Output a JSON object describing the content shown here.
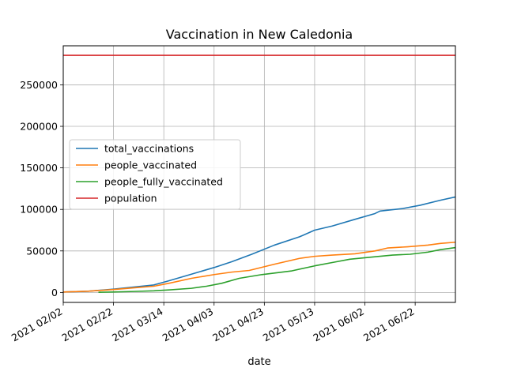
{
  "chart_data": {
    "type": "line",
    "title": "Vaccination in New Caledonia",
    "xlabel": "date",
    "ylabel": "",
    "grid": true,
    "legend_position": "center-left",
    "xlim": [
      "2021-02-02",
      "2021-07-08"
    ],
    "ylim": [
      -12000,
      297000
    ],
    "yticks": [
      0,
      50000,
      100000,
      150000,
      200000,
      250000
    ],
    "xticks": [
      {
        "date": "2021-02-02",
        "label": "2021 02/02"
      },
      {
        "date": "2021-02-22",
        "label": "2021 02/22"
      },
      {
        "date": "2021-03-14",
        "label": "2021 03/14"
      },
      {
        "date": "2021-04-03",
        "label": "2021 04/03"
      },
      {
        "date": "2021-04-23",
        "label": "2021 04/23"
      },
      {
        "date": "2021-05-13",
        "label": "2021 05/13"
      },
      {
        "date": "2021-06-02",
        "label": "2021 06/02"
      },
      {
        "date": "2021-06-22",
        "label": "2021 06/22"
      }
    ],
    "series": [
      {
        "name": "total_vaccinations",
        "color": "#1f77b4",
        "points": [
          [
            "2021-02-02",
            500
          ],
          [
            "2021-02-12",
            1500
          ],
          [
            "2021-02-22",
            4000
          ],
          [
            "2021-03-02",
            6500
          ],
          [
            "2021-03-10",
            9000
          ],
          [
            "2021-03-16",
            14000
          ],
          [
            "2021-03-25",
            22000
          ],
          [
            "2021-04-03",
            30000
          ],
          [
            "2021-04-10",
            37000
          ],
          [
            "2021-04-18",
            46000
          ],
          [
            "2021-04-27",
            57000
          ],
          [
            "2021-05-07",
            67000
          ],
          [
            "2021-05-13",
            75000
          ],
          [
            "2021-05-20",
            80000
          ],
          [
            "2021-05-29",
            88000
          ],
          [
            "2021-06-06",
            95000
          ],
          [
            "2021-06-08",
            98000
          ],
          [
            "2021-06-17",
            101000
          ],
          [
            "2021-06-24",
            105000
          ],
          [
            "2021-07-02",
            111000
          ],
          [
            "2021-07-08",
            115000
          ]
        ]
      },
      {
        "name": "people_vaccinated",
        "color": "#ff7f0e",
        "points": [
          [
            "2021-02-02",
            500
          ],
          [
            "2021-02-12",
            1500
          ],
          [
            "2021-02-22",
            3500
          ],
          [
            "2021-03-02",
            5500
          ],
          [
            "2021-03-10",
            7500
          ],
          [
            "2021-03-16",
            11000
          ],
          [
            "2021-03-25",
            17000
          ],
          [
            "2021-04-03",
            21500
          ],
          [
            "2021-04-10",
            24500
          ],
          [
            "2021-04-17",
            26500
          ],
          [
            "2021-04-27",
            34000
          ],
          [
            "2021-05-07",
            41000
          ],
          [
            "2021-05-13",
            43500
          ],
          [
            "2021-05-20",
            45000
          ],
          [
            "2021-05-29",
            46500
          ],
          [
            "2021-06-06",
            50000
          ],
          [
            "2021-06-11",
            53500
          ],
          [
            "2021-06-19",
            55000
          ],
          [
            "2021-06-27",
            57000
          ],
          [
            "2021-07-02",
            59000
          ],
          [
            "2021-07-08",
            60500
          ]
        ]
      },
      {
        "name": "people_fully_vaccinated",
        "color": "#2ca02c",
        "points": [
          [
            "2021-02-16",
            200
          ],
          [
            "2021-02-22",
            500
          ],
          [
            "2021-03-02",
            1200
          ],
          [
            "2021-03-10",
            2000
          ],
          [
            "2021-03-16",
            3000
          ],
          [
            "2021-03-25",
            5000
          ],
          [
            "2021-03-31",
            7500
          ],
          [
            "2021-04-06",
            11000
          ],
          [
            "2021-04-13",
            17000
          ],
          [
            "2021-04-22",
            21500
          ],
          [
            "2021-05-04",
            26000
          ],
          [
            "2021-05-13",
            32000
          ],
          [
            "2021-05-20",
            36000
          ],
          [
            "2021-05-27",
            40000
          ],
          [
            "2021-06-06",
            43000
          ],
          [
            "2021-06-13",
            45000
          ],
          [
            "2021-06-20",
            46000
          ],
          [
            "2021-06-27",
            48500
          ],
          [
            "2021-07-02",
            51500
          ],
          [
            "2021-07-08",
            54000
          ]
        ]
      },
      {
        "name": "population",
        "color": "#d62728",
        "points": [
          [
            "2021-02-02",
            285498
          ],
          [
            "2021-07-08",
            285498
          ]
        ]
      }
    ]
  }
}
